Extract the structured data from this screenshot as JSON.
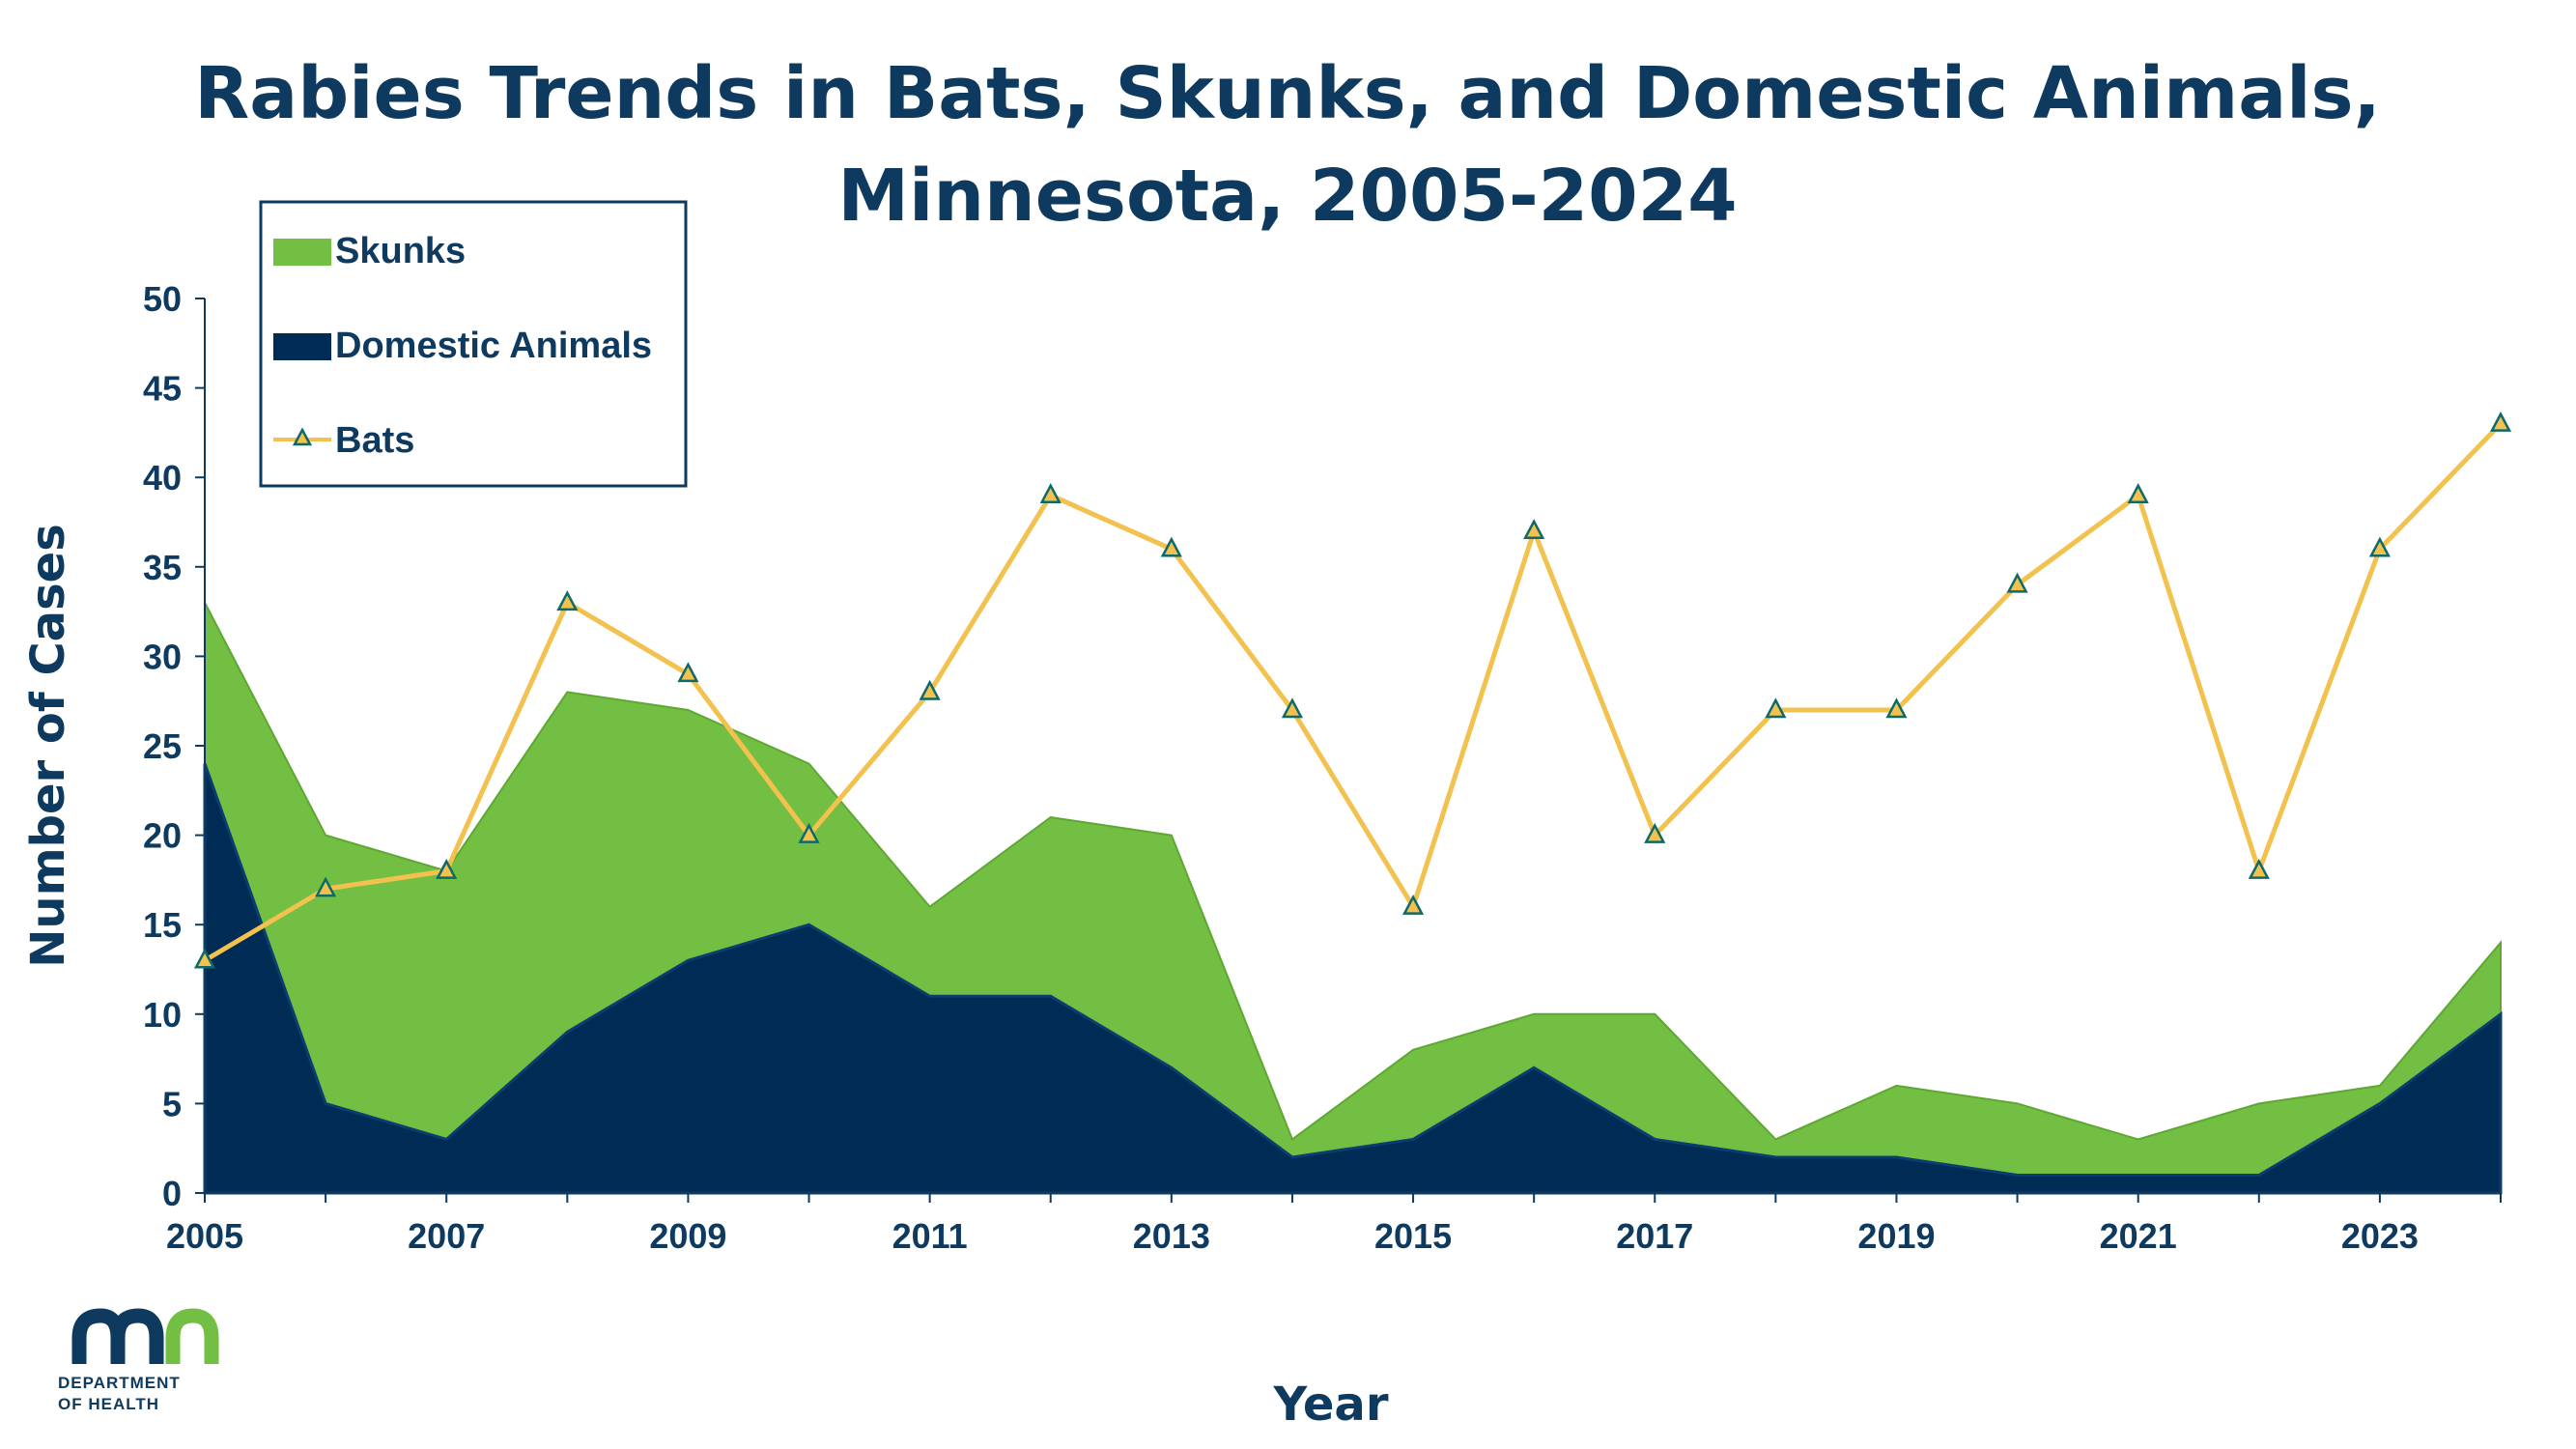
{
  "chart_data": {
    "type": "area",
    "title": [
      "Rabies Trends in Bats, Skunks, and Domestic Animals,",
      "Minnesota, 2005-2024"
    ],
    "xlabel": "Year",
    "ylabel": "Number of Cases",
    "ylim": [
      0,
      50
    ],
    "yticks": [
      0,
      5,
      10,
      15,
      20,
      25,
      30,
      35,
      40,
      45,
      50
    ],
    "x": [
      2005,
      2006,
      2007,
      2008,
      2009,
      2010,
      2011,
      2012,
      2013,
      2014,
      2015,
      2016,
      2017,
      2018,
      2019,
      2020,
      2021,
      2022,
      2023,
      2024
    ],
    "xtick_labels": [
      "2005",
      "2007",
      "2009",
      "2011",
      "2013",
      "2015",
      "2017",
      "2019",
      "2021",
      "2023"
    ],
    "legend_position": "top-left",
    "grid": false,
    "series": [
      {
        "name": "Skunks",
        "kind": "area",
        "stacked_on": "Domestic Animals",
        "color": "#72bf44",
        "values": [
          9,
          15,
          15,
          19,
          14,
          9,
          5,
          10,
          13,
          1,
          5,
          3,
          7,
          1,
          4,
          4,
          2,
          4,
          1,
          4
        ]
      },
      {
        "name": "Domestic Animals",
        "kind": "area",
        "color": "#002b54",
        "values": [
          24,
          5,
          3,
          9,
          13,
          15,
          11,
          11,
          7,
          2,
          3,
          7,
          3,
          2,
          2,
          1,
          1,
          1,
          5,
          10
        ]
      },
      {
        "name": "Bats",
        "kind": "line",
        "marker": "triangle",
        "color": "#f2c14e",
        "values": [
          13,
          17,
          18,
          33,
          29,
          20,
          28,
          39,
          36,
          27,
          16,
          37,
          20,
          27,
          27,
          34,
          39,
          18,
          36,
          43
        ]
      }
    ]
  },
  "logo": {
    "text_line1": "DEPARTMENT",
    "text_line2": "OF HEALTH",
    "colors": {
      "primary": "#0e3a5f",
      "accent": "#72bf44"
    }
  }
}
